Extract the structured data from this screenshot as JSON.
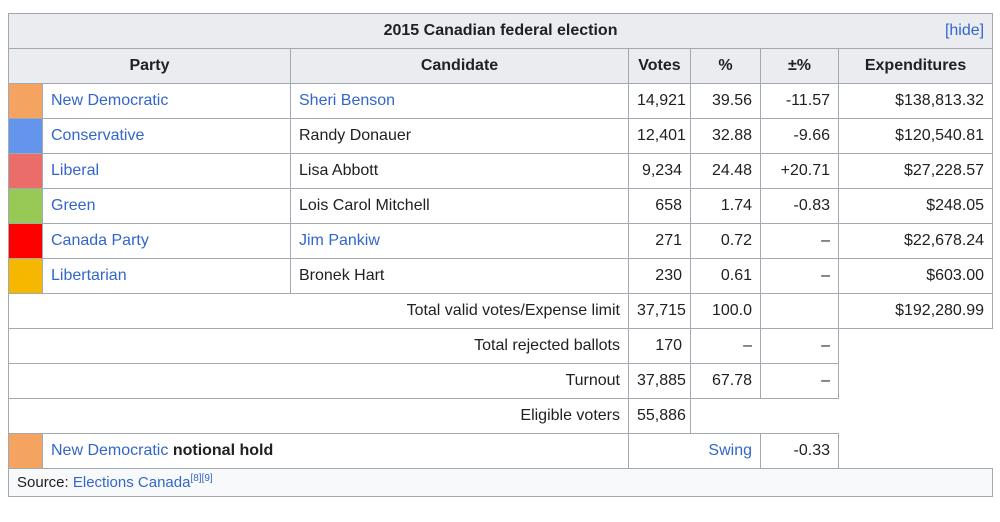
{
  "box": {
    "title": "2015 Canadian federal election",
    "hide_label": "[hide]"
  },
  "headers": {
    "party": "Party",
    "candidate": "Candidate",
    "votes": "Votes",
    "pct": "%",
    "change": "±%",
    "expenditures": "Expenditures"
  },
  "rows": [
    {
      "color": "#f4a460",
      "party": "New Democratic",
      "candidate": "Sheri Benson",
      "candidate_link": true,
      "votes": "14,921",
      "pct": "39.56",
      "change": "-11.57",
      "expenditures": "$138,813.32"
    },
    {
      "color": "#6495ed",
      "party": "Conservative",
      "candidate": "Randy Donauer",
      "candidate_link": false,
      "votes": "12,401",
      "pct": "32.88",
      "change": "-9.66",
      "expenditures": "$120,540.81"
    },
    {
      "color": "#ea6d6a",
      "party": "Liberal",
      "candidate": "Lisa Abbott",
      "candidate_link": false,
      "votes": "9,234",
      "pct": "24.48",
      "change": "+20.71",
      "expenditures": "$27,228.57"
    },
    {
      "color": "#99c955",
      "party": "Green",
      "candidate": "Lois Carol Mitchell",
      "candidate_link": false,
      "votes": "658",
      "pct": "1.74",
      "change": "-0.83",
      "expenditures": "$248.05"
    },
    {
      "color": "#ff0000",
      "party": "Canada Party",
      "candidate": "Jim Pankiw",
      "candidate_link": true,
      "votes": "271",
      "pct": "0.72",
      "change": "–",
      "expenditures": "$22,678.24"
    },
    {
      "color": "#f5b700",
      "party": "Libertarian",
      "candidate": "Bronek Hart",
      "candidate_link": false,
      "votes": "230",
      "pct": "0.61",
      "change": "–",
      "expenditures": "$603.00"
    }
  ],
  "totals": {
    "valid": {
      "label": "Total valid votes/Expense limit",
      "votes": "37,715",
      "pct": "100.0",
      "expenditures": "$192,280.99"
    },
    "rejected": {
      "label": "Total rejected ballots",
      "votes": "170",
      "pct": "–",
      "change": "–"
    },
    "turnout": {
      "label": "Turnout",
      "votes": "37,885",
      "pct": "67.78",
      "change": "–"
    },
    "eligible": {
      "label": "Eligible voters",
      "votes": "55,886"
    }
  },
  "hold": {
    "color": "#f4a460",
    "party": "New Democratic",
    "suffix": "notional hold",
    "swing_label": "Swing",
    "swing_value": "-0.33"
  },
  "source": {
    "prefix": "Source: ",
    "link": "Elections Canada",
    "refs": "[8][9]"
  }
}
